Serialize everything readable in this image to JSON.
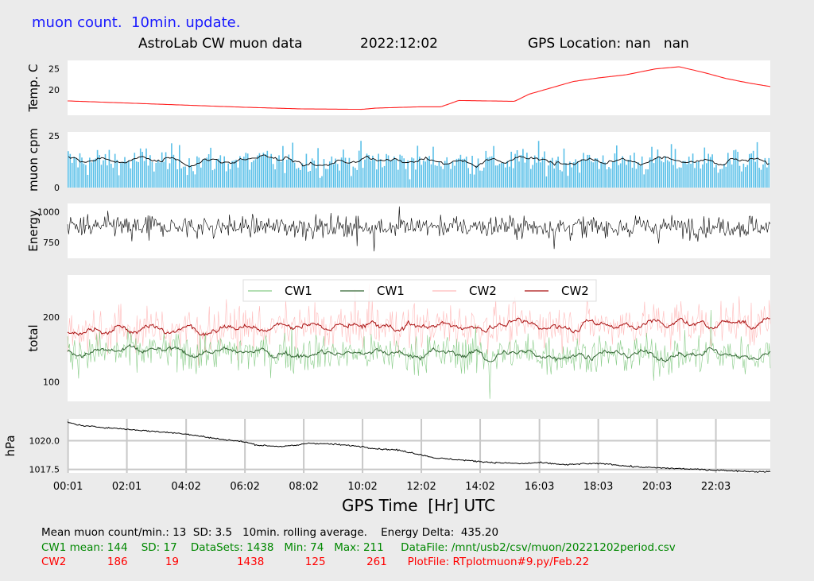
{
  "header": {
    "update_note": "muon count.  10min. update.",
    "title_left": "AstroLab CW muon data",
    "title_date": "2022:12:02",
    "title_gps": "GPS Location: nan   nan"
  },
  "colors": {
    "temp": "#ff2020",
    "muon_bars": "#5bc0e8",
    "muon_avg": "#000000",
    "energy": "#000000",
    "cw1_raw": "#88cc88",
    "cw1_avg": "#336633",
    "cw2_raw": "#ffbbbb",
    "cw2_avg": "#aa1111",
    "pressure": "#000000"
  },
  "chart_data": [
    {
      "type": "line",
      "ylabel": "Temp. C",
      "yticks": [
        20,
        25
      ],
      "ylim": [
        14,
        27
      ],
      "xlim": [
        0,
        23.9
      ],
      "series": [
        {
          "x": [
            0,
            2,
            4,
            6,
            8,
            10.0,
            10.5,
            12,
            12.7,
            13.3,
            15.2,
            15.7,
            16.2,
            17.2,
            18,
            19,
            20,
            20.8,
            21.6,
            22.4,
            23.2,
            23.9
          ],
          "y": [
            17.4,
            16.9,
            16.4,
            15.9,
            15.5,
            15.4,
            15.7,
            16.0,
            16.0,
            17.5,
            17.3,
            19.0,
            20.0,
            22.0,
            22.8,
            23.6,
            25.0,
            25.5,
            24.2,
            22.7,
            21.6,
            20.8
          ]
        }
      ]
    },
    {
      "type": "bar",
      "ylabel": "muon cpm",
      "yticks": [
        0,
        25
      ],
      "ylim": [
        0,
        27
      ],
      "xlim": [
        0,
        23.9
      ],
      "mean": 13,
      "sd": 3.5
    },
    {
      "type": "line",
      "ylabel": "Energy",
      "yticks": [
        750,
        1000
      ],
      "ylim": [
        620,
        1070
      ],
      "xlim": [
        0,
        23.9
      ],
      "mean": 880,
      "delta": 435.2
    },
    {
      "type": "line",
      "ylabel": "total",
      "yticks": [
        100,
        200
      ],
      "ylim": [
        70,
        265
      ],
      "xlim": [
        0,
        23.9
      ],
      "legend": [
        "CW1",
        "CW1",
        "CW2",
        "CW2"
      ],
      "series": [
        {
          "name": "CW1",
          "mean": 144,
          "sd": 17,
          "min": 74,
          "max": 211
        },
        {
          "name": "CW2",
          "mean": 186,
          "sd": 19,
          "min": 125,
          "max": 261
        }
      ]
    },
    {
      "type": "line",
      "ylabel": "hPa",
      "yticks": [
        1017.5,
        1020.0
      ],
      "ylim": [
        1017.2,
        1021.9
      ],
      "xlim": [
        0,
        23.9
      ],
      "xlabel": "GPS Time  [Hr] UTC",
      "xticks": [
        0.0167,
        2.0167,
        4.033,
        6.033,
        8.033,
        10.033,
        12.033,
        14.033,
        16.05,
        18.05,
        20.05,
        22.05
      ],
      "xtick_labels": [
        "00:01",
        "02:01",
        "04:02",
        "06:02",
        "08:02",
        "10:02",
        "12:02",
        "14:02",
        "16:03",
        "18:03",
        "20:03",
        "22:03"
      ],
      "series": [
        {
          "x": [
            0,
            0.5,
            2,
            3,
            4,
            5,
            6,
            6.5,
            7.3,
            7.8,
            8.2,
            9,
            10,
            10.5,
            11.2,
            12,
            12.5,
            13.5,
            14.5,
            15.5,
            16,
            17,
            17.5,
            18.3,
            19,
            19.5,
            20.5,
            21.5,
            22.5,
            23.5,
            23.9
          ],
          "y": [
            1021.6,
            1021.3,
            1021.0,
            1020.8,
            1020.6,
            1020.2,
            1019.9,
            1019.6,
            1019.5,
            1019.6,
            1019.8,
            1019.7,
            1019.5,
            1019.3,
            1019.2,
            1018.8,
            1018.5,
            1018.3,
            1018.1,
            1018.0,
            1018.1,
            1017.9,
            1018.0,
            1018.0,
            1017.8,
            1017.7,
            1017.6,
            1017.5,
            1017.4,
            1017.3,
            1017.3
          ]
        }
      ]
    }
  ],
  "stats": {
    "line1": "Mean muon count/min.: 13  SD: 3.5   10min. rolling average.    Energy Delta:  435.20",
    "line2": "CW1 mean: 144    SD: 17    DataSets: 1438   Min: 74   Max: 211     DataFile: /mnt/usb2/csv/muon/20221202period.csv",
    "line3": "CW2            186           19                 1438            125            261      PlotFile: RTplotmuon#9.py/Feb.22"
  }
}
